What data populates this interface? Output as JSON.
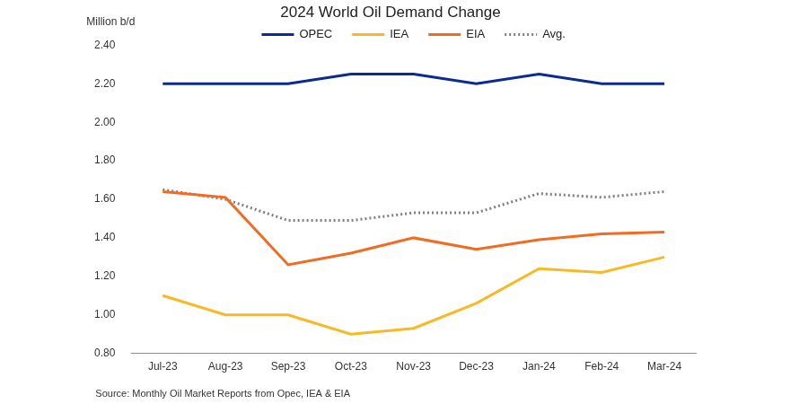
{
  "chart_data": {
    "type": "line",
    "title": "2024 World Oil Demand Change",
    "y_label": "Million b/d",
    "source": "Source: Monthly Oil Market Reports from Opec, IEA & EIA",
    "categories": [
      "Jul-23",
      "Aug-23",
      "Sep-23",
      "Oct-23",
      "Nov-23",
      "Dec-23",
      "Jan-24",
      "Feb-24",
      "Mar-24"
    ],
    "series": [
      {
        "name": "OPEC",
        "color": "#0d2a94",
        "line_style": "solid",
        "values": [
          2.2,
          2.2,
          2.2,
          2.25,
          2.25,
          2.2,
          2.25,
          2.2,
          2.2
        ]
      },
      {
        "name": "IEA",
        "color": "#f7b924",
        "line_style": "solid",
        "values": [
          1.1,
          1.0,
          1.0,
          0.9,
          0.93,
          1.06,
          1.24,
          1.22,
          1.3
        ]
      },
      {
        "name": "EIA",
        "color": "#f26b21",
        "line_style": "solid",
        "values": [
          1.64,
          1.61,
          1.26,
          1.32,
          1.4,
          1.34,
          1.39,
          1.42,
          1.43
        ]
      },
      {
        "name": "Avg.",
        "color": "#7f7f7f",
        "line_style": "dotted",
        "values": [
          1.65,
          1.6,
          1.49,
          1.49,
          1.53,
          1.53,
          1.63,
          1.61,
          1.64
        ]
      }
    ],
    "ylim": [
      0.8,
      2.4
    ],
    "yticks": [
      {
        "value": 0.8,
        "label": "0.80"
      },
      {
        "value": 1.0,
        "label": "1.00"
      },
      {
        "value": 1.2,
        "label": "1.20"
      },
      {
        "value": 1.4,
        "label": "1.40"
      },
      {
        "value": 1.6,
        "label": "1.60"
      },
      {
        "value": 1.8,
        "label": "1.80"
      },
      {
        "value": 2.0,
        "label": "2.00"
      },
      {
        "value": 2.2,
        "label": "2.20"
      },
      {
        "value": 2.4,
        "label": "2.40"
      }
    ],
    "grid": false,
    "legend": "top"
  }
}
